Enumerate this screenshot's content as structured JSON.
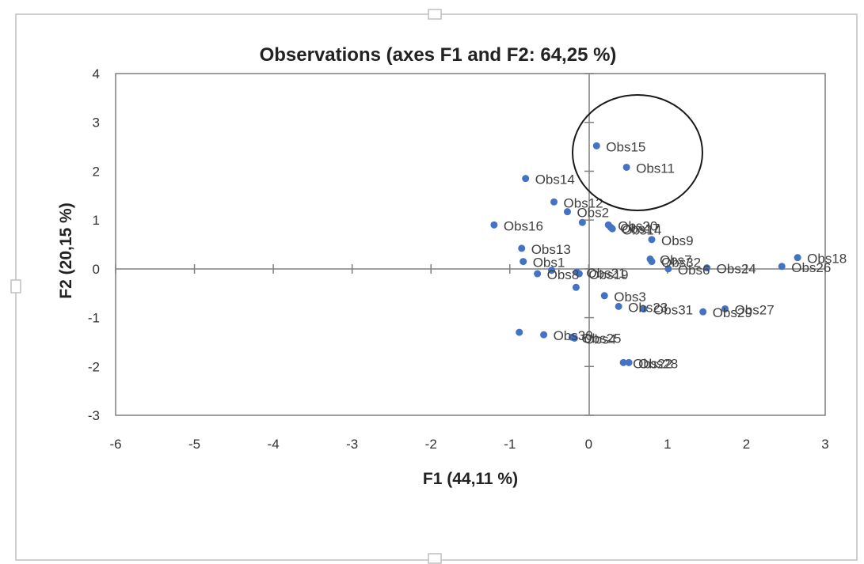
{
  "chart_data": {
    "type": "scatter",
    "title": "Observations (axes F1 and F2: 64,25 %)",
    "xlabel": "F1 (44,11 %)",
    "ylabel": "F2 (20,15 %)",
    "xlim": [
      -6,
      3
    ],
    "ylim": [
      -3,
      4
    ],
    "x_ticks": [
      "-6",
      "-5",
      "-4",
      "-3",
      "-2",
      "-1",
      "0",
      "1",
      "2",
      "3"
    ],
    "y_ticks": [
      "-3",
      "-2",
      "-1",
      "0",
      "1",
      "2",
      "3",
      "4"
    ],
    "grid": false,
    "legend": "none",
    "point_color": "#4472C4",
    "annotation": "circle around Obs15 and Obs11",
    "points": [
      {
        "label": "Obs15",
        "x": 0.1,
        "y": 2.52
      },
      {
        "label": "Obs11",
        "x": 0.48,
        "y": 2.08
      },
      {
        "label": "Obs14",
        "x": -0.8,
        "y": 1.85
      },
      {
        "label": "Obs12",
        "x": -0.44,
        "y": 1.37
      },
      {
        "label": "Obs2",
        "x": -0.27,
        "y": 1.17
      },
      {
        "label": "",
        "x": -0.08,
        "y": 0.95
      },
      {
        "label": "Obs20",
        "x": 0.25,
        "y": 0.9
      },
      {
        "label": "Obs17",
        "x": 0.28,
        "y": 0.85
      },
      {
        "label": "Obs14",
        "x": 0.3,
        "y": 0.82
      },
      {
        "label": "Obs16",
        "x": -1.2,
        "y": 0.9
      },
      {
        "label": "Obs9",
        "x": 0.8,
        "y": 0.6
      },
      {
        "label": "Obs13",
        "x": -0.85,
        "y": 0.42
      },
      {
        "label": "Obs1",
        "x": -0.83,
        "y": 0.15
      },
      {
        "label": "",
        "x": -0.47,
        "y": -0.03
      },
      {
        "label": "Obs8",
        "x": -0.65,
        "y": -0.1
      },
      {
        "label": "Obs21",
        "x": -0.15,
        "y": -0.07
      },
      {
        "label": "Obs19",
        "x": -0.12,
        "y": -0.1
      },
      {
        "label": "Obs7",
        "x": 0.78,
        "y": 0.2
      },
      {
        "label": "Obs32",
        "x": 0.8,
        "y": 0.15
      },
      {
        "label": "Obs6",
        "x": 1.01,
        "y": 0.0
      },
      {
        "label": "Obs24",
        "x": 1.5,
        "y": 0.02
      },
      {
        "label": "Obs18",
        "x": 2.65,
        "y": 0.23
      },
      {
        "label": "Obs26",
        "x": 2.45,
        "y": 0.05
      },
      {
        "label": "",
        "x": -0.16,
        "y": -0.38
      },
      {
        "label": "Obs3",
        "x": 0.2,
        "y": -0.55
      },
      {
        "label": "Obs23",
        "x": 0.38,
        "y": -0.77
      },
      {
        "label": "Obs31",
        "x": 0.7,
        "y": -0.82
      },
      {
        "label": "Obs29",
        "x": 1.45,
        "y": -0.88
      },
      {
        "label": "Obs27",
        "x": 1.73,
        "y": -0.82
      },
      {
        "label": "",
        "x": -0.88,
        "y": -1.3
      },
      {
        "label": "Obs30",
        "x": -0.57,
        "y": -1.35
      },
      {
        "label": "Obs25",
        "x": -0.21,
        "y": -1.4
      },
      {
        "label": "Obs4",
        "x": -0.18,
        "y": -1.42
      },
      {
        "label": "Obs22",
        "x": 0.44,
        "y": -1.92
      },
      {
        "label": "Obs28",
        "x": 0.51,
        "y": -1.92
      }
    ]
  }
}
